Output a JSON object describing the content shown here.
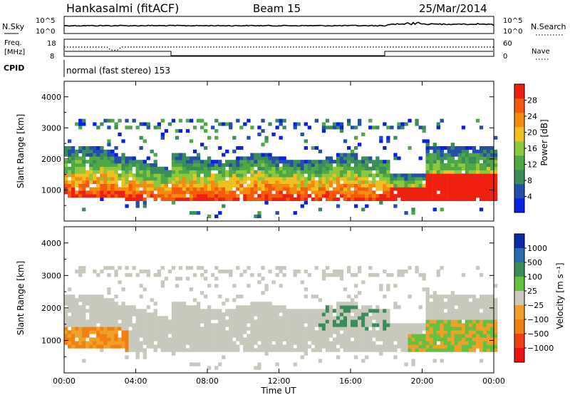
{
  "header": {
    "station": "Hankasalmi (fitACF)",
    "beam": "Beam 15",
    "date": "25/Mar/2014"
  },
  "noise_panel": {
    "left_label": "N.Sky",
    "left_ticks": [
      "10^5",
      "10^0"
    ],
    "right_label": "N.Search",
    "right_ticks": [
      "10^5",
      "10^0"
    ]
  },
  "freq_panel": {
    "left_label_1": "Freq.",
    "left_label_2": "[MHz]",
    "left_ticks": [
      "18",
      "8"
    ],
    "right_label": "Nave",
    "right_ticks": [
      "60",
      "0"
    ]
  },
  "cpid_panel": {
    "label": "CPID",
    "text": "normal (fast stereo) 153"
  },
  "colors": {
    "power_scale": [
      "#0a1fe6",
      "#244ea8",
      "#3a8c5a",
      "#4fa846",
      "#8cc83c",
      "#f0c020",
      "#f58a10",
      "#f55a0a",
      "#ef2010"
    ],
    "velocity_scale": [
      "#0a2aa8",
      "#2a6ab0",
      "#3a8c5a",
      "#64c040",
      "#c8c8bc",
      "#f0a028",
      "#f08010",
      "#f04010",
      "#ee1010"
    ]
  },
  "chart_data": [
    {
      "type": "heatmap",
      "name": "Power",
      "ylabel": "Slant Range [km]",
      "ylim": [
        0,
        4500
      ],
      "yticks": [
        "1000",
        "2000",
        "3000",
        "4000"
      ],
      "xlim": [
        0,
        24
      ],
      "xticks": [
        "00:00",
        "04:00",
        "08:00",
        "12:00",
        "16:00",
        "20:00",
        "00:00"
      ],
      "colorbar": {
        "label": "Power [dB]",
        "ticks": [
          "4",
          "8",
          "12",
          "16",
          "20",
          "24",
          "28"
        ],
        "range": [
          0,
          32
        ]
      }
    },
    {
      "type": "heatmap",
      "name": "Velocity",
      "ylabel": "Slant Range [km]",
      "ylim": [
        0,
        4500
      ],
      "yticks": [
        "1000",
        "2000",
        "3000",
        "4000"
      ],
      "xlim": [
        0,
        24
      ],
      "xticks": [
        "00:00",
        "04:00",
        "08:00",
        "12:00",
        "16:00",
        "20:00",
        "00:00"
      ],
      "xlabel": "Time UT",
      "colorbar": {
        "label": "Velocity [m s⁻¹]",
        "ticks": [
          "1000",
          "500",
          "100",
          "25",
          "−25",
          "−100",
          "−500",
          "−1000"
        ]
      }
    }
  ]
}
